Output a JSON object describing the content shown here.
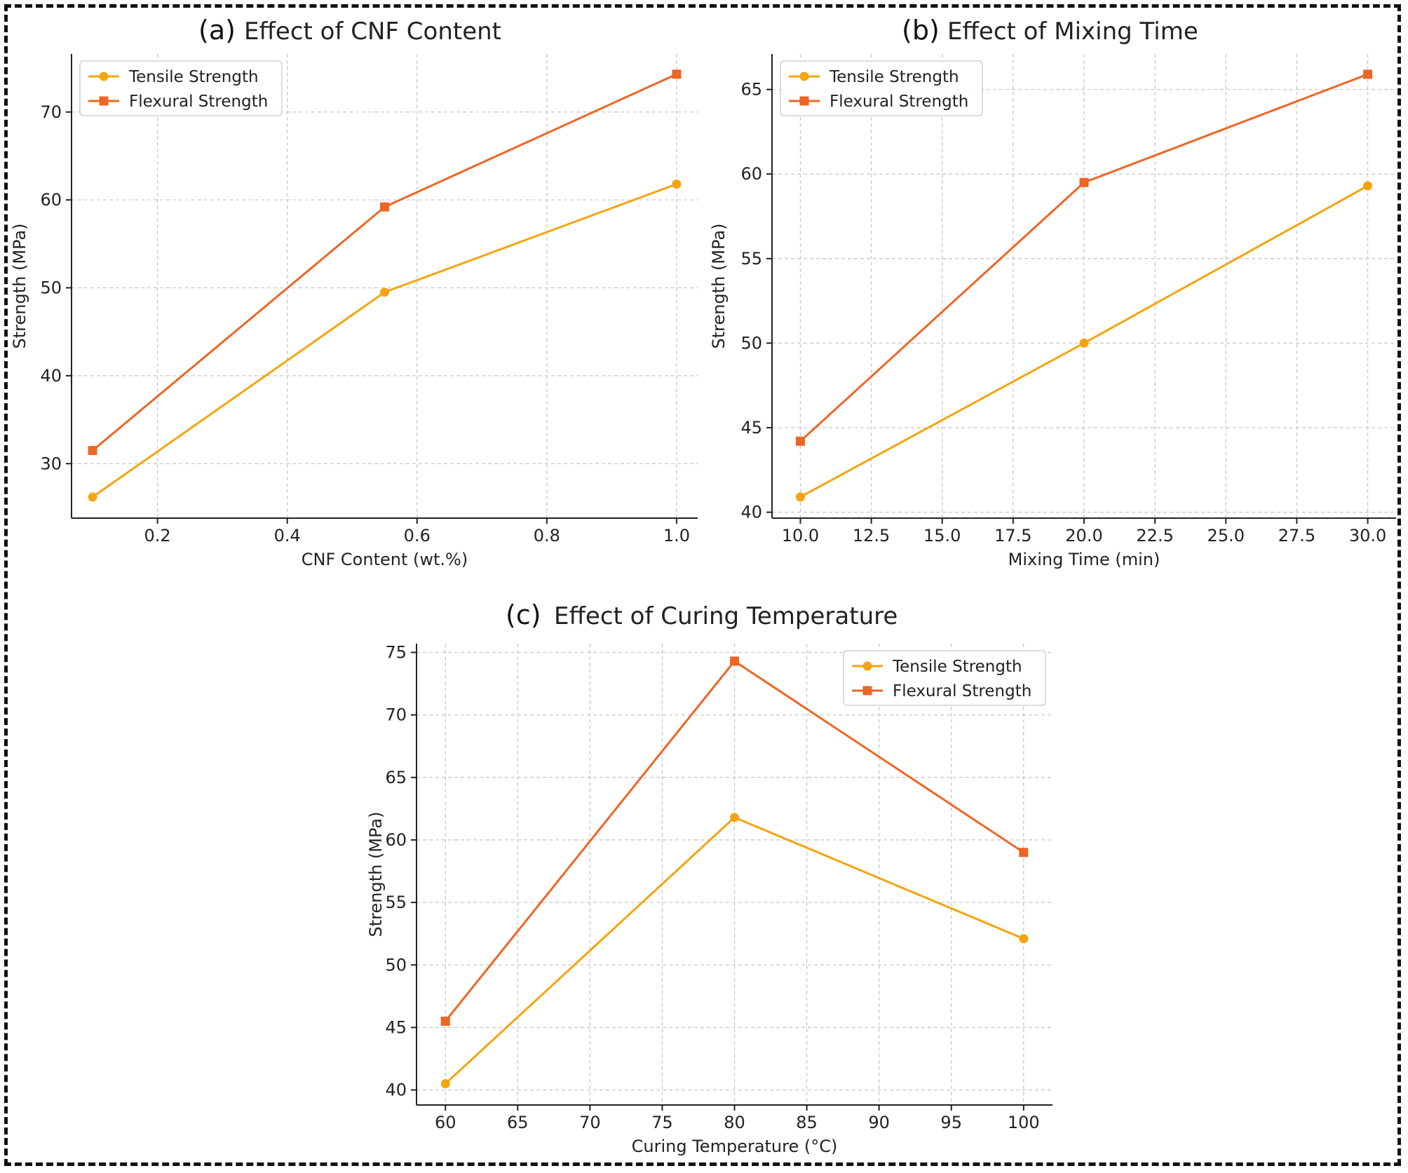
{
  "colors": {
    "tensile": "#f5a40f",
    "flexural": "#ee6524",
    "grid": "#c8c8c8",
    "axis": "#222222",
    "text": "#222222"
  },
  "chart_data": [
    {
      "type": "line",
      "label": "(a)",
      "title": "Effect of CNF Content",
      "xlabel": "CNF Content (wt.%)",
      "ylabel": "Strength (MPa)",
      "xlim": [
        0.0675,
        1.0325
      ],
      "ylim": [
        23.8,
        76.6
      ],
      "xticks": [
        0.2,
        0.4,
        0.6,
        0.8,
        1.0
      ],
      "xtick_labels": [
        "0.2",
        "0.4",
        "0.6",
        "0.8",
        "1.0"
      ],
      "yticks": [
        30,
        40,
        50,
        60,
        70
      ],
      "ytick_labels": [
        "30",
        "40",
        "50",
        "60",
        "70"
      ],
      "legend": "top-left",
      "grid": true,
      "series": [
        {
          "name": "Tensile Strength",
          "marker": "circle",
          "x": [
            0.1,
            0.55,
            1.0
          ],
          "y": [
            26.2,
            49.5,
            61.8
          ]
        },
        {
          "name": "Flexural Strength",
          "marker": "square",
          "x": [
            0.1,
            0.55,
            1.0
          ],
          "y": [
            31.5,
            59.2,
            74.3
          ]
        }
      ]
    },
    {
      "type": "line",
      "label": "(b)",
      "title": "Effect of Mixing Time",
      "xlabel": "Mixing Time (min)",
      "ylabel": "Strength (MPa)",
      "xlim": [
        9.0,
        31.0
      ],
      "ylim": [
        39.65,
        67.1
      ],
      "xticks": [
        10.0,
        12.5,
        15.0,
        17.5,
        20.0,
        22.5,
        25.0,
        27.5,
        30.0
      ],
      "xtick_labels": [
        "10.0",
        "12.5",
        "15.0",
        "17.5",
        "20.0",
        "22.5",
        "25.0",
        "27.5",
        "30.0"
      ],
      "yticks": [
        40,
        45,
        50,
        55,
        60,
        65
      ],
      "ytick_labels": [
        "40",
        "45",
        "50",
        "55",
        "60",
        "65"
      ],
      "legend": "top-left",
      "grid": true,
      "series": [
        {
          "name": "Tensile Strength",
          "marker": "circle",
          "x": [
            10,
            20,
            30
          ],
          "y": [
            40.9,
            50.0,
            59.3
          ]
        },
        {
          "name": "Flexural Strength",
          "marker": "square",
          "x": [
            10,
            20,
            30
          ],
          "y": [
            44.2,
            59.5,
            65.9
          ]
        }
      ]
    },
    {
      "type": "line",
      "label": "(c)",
      "title": "Effect of Curing Temperature",
      "xlabel": "Curing Temperature (°C)",
      "ylabel": "Strength (MPa)",
      "xlim": [
        58.0,
        102.0
      ],
      "ylim": [
        38.8,
        75.7
      ],
      "xticks": [
        60,
        65,
        70,
        75,
        80,
        85,
        90,
        95,
        100
      ],
      "xtick_labels": [
        "60",
        "65",
        "70",
        "75",
        "80",
        "85",
        "90",
        "95",
        "100"
      ],
      "yticks": [
        40,
        45,
        50,
        55,
        60,
        65,
        70,
        75
      ],
      "ytick_labels": [
        "40",
        "45",
        "50",
        "55",
        "60",
        "65",
        "70",
        "75"
      ],
      "legend": "top-right",
      "grid": true,
      "series": [
        {
          "name": "Tensile Strength",
          "marker": "circle",
          "x": [
            60,
            80,
            100
          ],
          "y": [
            40.5,
            61.8,
            52.1
          ]
        },
        {
          "name": "Flexural Strength",
          "marker": "square",
          "x": [
            60,
            80,
            100
          ],
          "y": [
            45.5,
            74.3,
            59.0
          ]
        }
      ]
    }
  ]
}
